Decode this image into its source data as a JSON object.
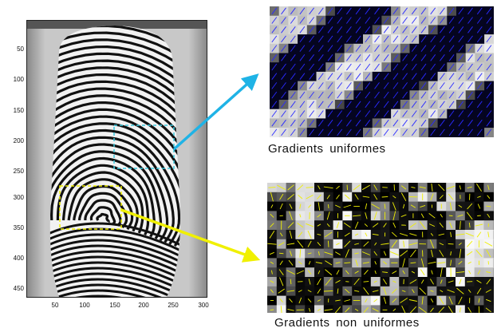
{
  "figure": {
    "y_ticks": [
      "50",
      "100",
      "150",
      "200",
      "250",
      "300",
      "350",
      "400",
      "450"
    ],
    "x_ticks": [
      "50",
      "100",
      "150",
      "200",
      "250",
      "300"
    ]
  },
  "panels": {
    "top": {
      "caption": "Gradients uniformes",
      "highlight_color": "#3cc8dc",
      "vector_color": "#2a2aff"
    },
    "bottom": {
      "caption": "Gradients non uniformes",
      "highlight_color": "#f0f000",
      "vector_color": "#f0f000"
    }
  },
  "colors": {
    "cyan_arrow": "#1fb3e6",
    "yellow_arrow": "#f0f000"
  }
}
